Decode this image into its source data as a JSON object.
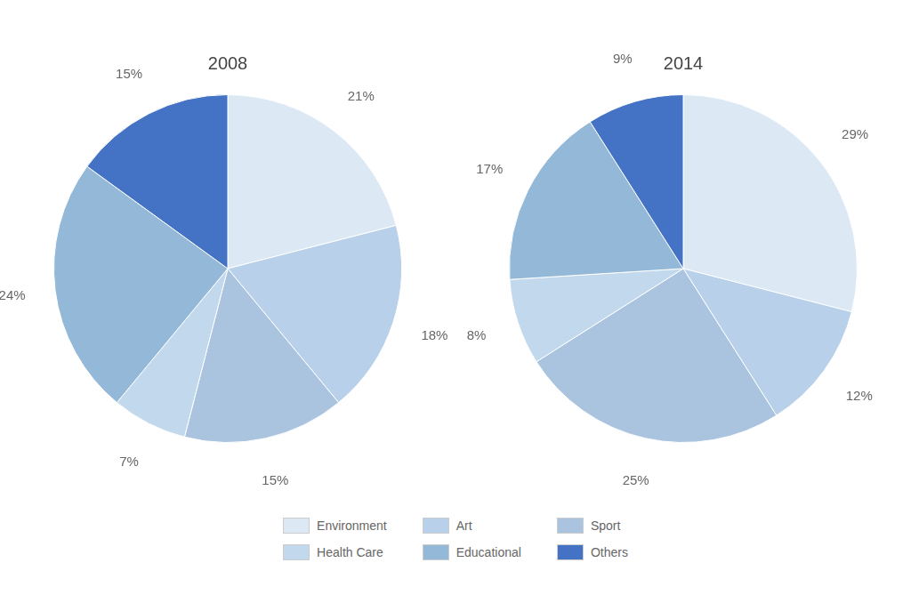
{
  "chart_data": [
    {
      "type": "pie",
      "title": "2008",
      "categories": [
        "Environment",
        "Art",
        "Sport",
        "Health Care",
        "Educational",
        "Others"
      ],
      "values": [
        21,
        18,
        15,
        7,
        24,
        15
      ],
      "value_labels": [
        "21%",
        "18%",
        "15%",
        "7%",
        "24%",
        "15%"
      ],
      "colors": [
        "#dce9f5",
        "#b8d0ea",
        "#aac4e0",
        "#c2d8ed",
        "#93b8d8",
        "#4472c4"
      ],
      "data_labels": true,
      "legend": "bottom"
    },
    {
      "type": "pie",
      "title": "2014",
      "categories": [
        "Environment",
        "Art",
        "Sport",
        "Health Care",
        "Educational",
        "Others"
      ],
      "values": [
        29,
        12,
        25,
        8,
        17,
        9
      ],
      "value_labels": [
        "29%",
        "12%",
        "25%",
        "8%",
        "17%",
        "9%"
      ],
      "colors": [
        "#dce9f5",
        "#b8d0ea",
        "#aac4e0",
        "#c2d8ed",
        "#93b8d8",
        "#4472c4"
      ],
      "data_labels": true,
      "legend": "bottom",
      "annotations": [
        {
          "text": "+",
          "category": "Health Care",
          "color": "#ffc000"
        }
      ]
    }
  ]
}
